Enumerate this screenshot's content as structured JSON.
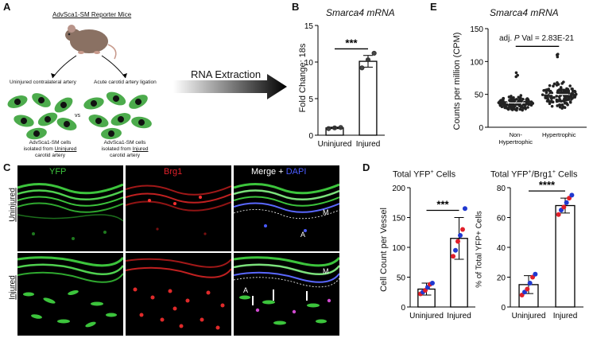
{
  "panel_letters": {
    "a": "A",
    "b": "B",
    "c": "C",
    "d": "D",
    "e": "E"
  },
  "panel_a": {
    "title": "AdvSca1-SM Reporter Mice",
    "left_label": "Uninjured contralateral artery",
    "right_label": "Acute carotid artery ligation",
    "vs": "vs",
    "left_caption": [
      "AdvSca1-SM cells",
      "isolated from ",
      "Uninjured",
      "carotid artery"
    ],
    "right_caption": [
      "AdvSca1-SM cells",
      "isolated from ",
      "Injured",
      "carotid artery"
    ],
    "arrow_label": "RNA Extraction"
  },
  "panel_b": {
    "chart_data": {
      "type": "bar",
      "title": "Smarca4 mRNA",
      "ylabel": "Fold Change: 18s",
      "categories": [
        "Uninjured",
        "Injured"
      ],
      "values": [
        1.0,
        10.1
      ],
      "error": [
        0.1,
        0.8
      ],
      "points": [
        [
          0.9,
          1.0,
          1.05
        ],
        [
          9.2,
          10.3,
          11.2
        ]
      ],
      "ylim": [
        0,
        15
      ],
      "yticks": [
        0,
        5,
        10,
        15
      ],
      "significance": "***"
    }
  },
  "panel_c": {
    "col_labels": [
      "YFP",
      "Brg1",
      "Merge + ",
      "DAPI"
    ],
    "row_labels": [
      "Uninjured",
      "Injured"
    ],
    "annotations": {
      "m": "M",
      "a": "A"
    }
  },
  "panel_d": {
    "titles": [
      "Total YFP",
      "Total YFP",
      "/Brg1",
      " Cells"
    ],
    "sup": "+",
    "left_title_tail": " Cells",
    "chart_data": [
      {
        "type": "bar",
        "title": "Total YFP+ Cells",
        "ylabel": "Cell Count per Vessel",
        "categories": [
          "Uninjured",
          "Injured"
        ],
        "values": [
          30,
          115
        ],
        "error": [
          10,
          35
        ],
        "points": [
          [
            22,
            25,
            28,
            33,
            38,
            40
          ],
          [
            85,
            95,
            110,
            120,
            130,
            165
          ]
        ],
        "ylim": [
          0,
          200
        ],
        "yticks": [
          0,
          50,
          100,
          150,
          200
        ],
        "significance": "***"
      },
      {
        "type": "bar",
        "title": "Total YFP+/Brg1+ Cells",
        "ylabel": "% of Total YFP+ Cells",
        "categories": [
          "Uninjured",
          "Injured"
        ],
        "values": [
          15,
          68
        ],
        "error": [
          6,
          5
        ],
        "points": [
          [
            8,
            10,
            12,
            16,
            20,
            22
          ],
          [
            62,
            65,
            67,
            70,
            73,
            75
          ]
        ],
        "ylim": [
          0,
          80
        ],
        "yticks": [
          0,
          20,
          40,
          60,
          80
        ],
        "significance": "****"
      }
    ],
    "point_colors": [
      "#e0202a",
      "#2038d0",
      "#e0202a",
      "#2038d0",
      "#e0202a",
      "#2038d0"
    ]
  },
  "panel_e": {
    "chart_data": {
      "type": "scatter",
      "title": "Smarca4 mRNA",
      "ylabel": "Counts per million (CPM)",
      "categories": [
        "Non-Hypertrophic",
        "Hypertrophic"
      ],
      "category_lines": [
        [
          "Non-",
          "Hypertrophic"
        ],
        [
          "Hypertrophic"
        ]
      ],
      "medians": [
        37,
        50
      ],
      "ranges": [
        [
          25,
          83
        ],
        [
          28,
          113
        ]
      ],
      "ylim": [
        0,
        150
      ],
      "yticks": [
        0,
        50,
        100,
        150
      ],
      "annotation": [
        "adj. ",
        "P",
        " Val = 2.83E-21"
      ]
    }
  },
  "colors": {
    "point": "#222222",
    "bar": "#ffffff",
    "green": "#3cc43c",
    "red": "#e0202a",
    "blue": "#4a5bff"
  }
}
